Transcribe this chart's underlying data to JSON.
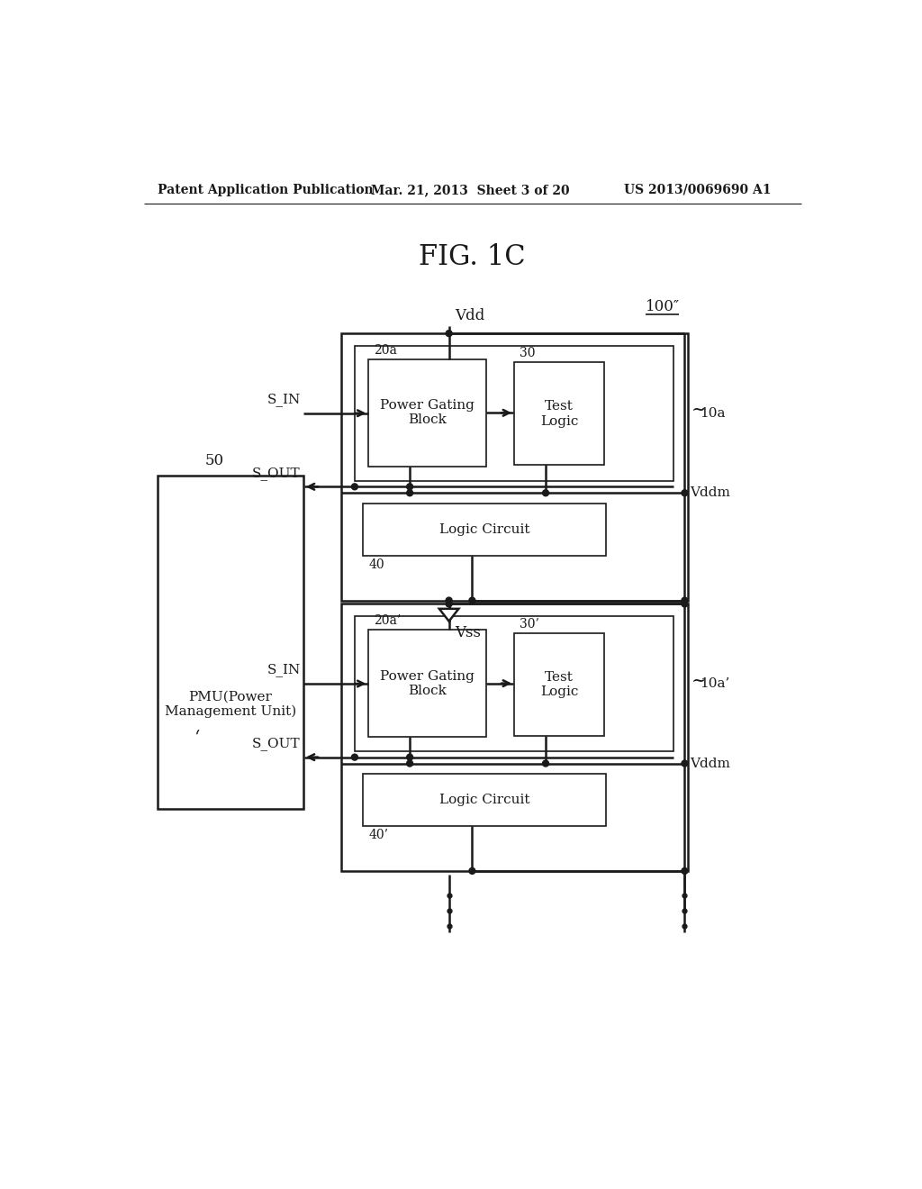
{
  "bg_color": "#ffffff",
  "line_color": "#1a1a1a",
  "header_left": "Patent Application Publication",
  "header_center": "Mar. 21, 2013  Sheet 3 of 20",
  "header_right": "US 2013/0069690 A1",
  "fig_label": "FIG. 1C",
  "ref_100": "100″",
  "ref_50": "50",
  "ref_10a": "10a",
  "ref_10a_prime": "10a’",
  "ref_20a": "20a",
  "ref_20a_prime": "20a’",
  "ref_30": "30",
  "ref_30_prime": "30’",
  "ref_40": "40",
  "ref_40_prime": "40’",
  "label_pmu": "PMU(Power\nManagement Unit)",
  "label_pgb": "Power Gating\nBlock",
  "label_tl": "Test\nLogic",
  "label_lc": "Logic Circuit",
  "label_vdd": "Vdd",
  "label_vss": "Vss",
  "label_vddm": "Vddm",
  "label_sin": "S_IN",
  "label_sout": "S_OUT"
}
